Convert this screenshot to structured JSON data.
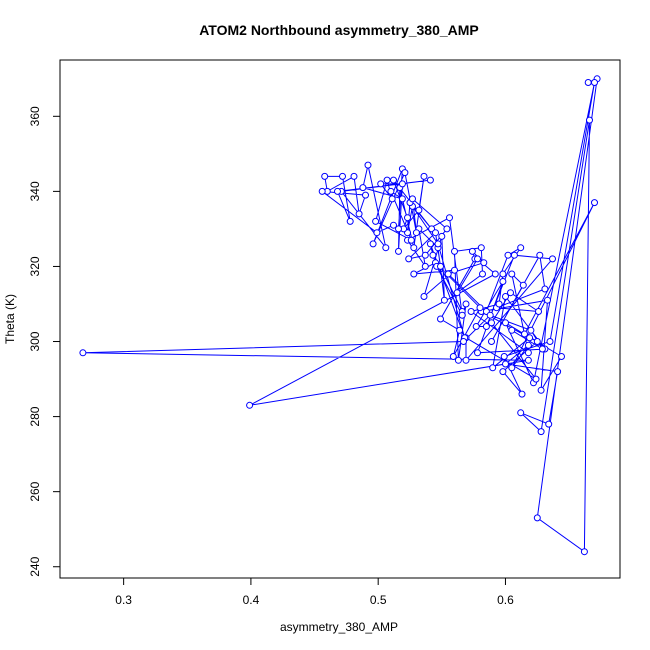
{
  "chart_data": {
    "type": "line",
    "title": "ATOM2 Northbound asymmetry_380_AMP",
    "xlabel": "asymmetry_380_AMP",
    "ylabel": "Theta (K)",
    "xlim": [
      0.25,
      0.69
    ],
    "ylim": [
      237,
      375
    ],
    "x_ticks": [
      0.3,
      0.4,
      0.5,
      0.6
    ],
    "y_ticks": [
      240,
      260,
      280,
      300,
      320,
      340,
      360
    ],
    "x_tick_labels": [
      "0.3",
      "0.4",
      "0.5",
      "0.6"
    ],
    "y_tick_labels": [
      "240",
      "260",
      "280",
      "300",
      "320",
      "340",
      "360"
    ],
    "line_color": "#0000ff",
    "marker": "open-circle",
    "grid": false,
    "legend": "none",
    "series": [
      {
        "x": [
          0.665,
          0.672,
          0.625,
          0.662,
          0.666,
          0.628,
          0.612,
          0.634,
          0.641,
          0.6,
          0.618,
          0.605,
          0.67,
          0.615,
          0.625,
          0.598,
          0.613,
          0.599,
          0.635,
          0.67,
          0.622,
          0.6,
          0.644,
          0.628,
          0.633,
          0.581,
          0.619,
          0.59,
          0.6,
          0.631,
          0.578,
          0.598,
          0.577,
          0.585,
          0.607,
          0.637,
          0.569,
          0.569,
          0.624,
          0.589,
          0.604,
          0.626,
          0.593,
          0.631,
          0.627,
          0.589,
          0.614,
          0.605,
          0.618,
          0.573,
          0.595,
          0.598,
          0.612,
          0.602,
          0.585,
          0.555,
          0.583,
          0.574,
          0.576,
          0.549,
          0.564,
          0.559,
          0.58,
          0.545,
          0.528,
          0.56,
          0.536,
          0.55,
          0.552,
          0.547,
          0.532,
          0.537,
          0.523,
          0.556,
          0.566,
          0.546,
          0.543,
          0.541,
          0.568,
          0.547,
          0.527,
          0.523,
          0.525,
          0.542,
          0.512,
          0.523,
          0.52,
          0.532,
          0.536,
          0.528,
          0.517,
          0.516,
          0.519,
          0.502,
          0.511,
          0.507,
          0.498,
          0.526,
          0.51,
          0.519,
          0.488,
          0.492,
          0.506,
          0.471,
          0.541,
          0.468,
          0.478,
          0.472,
          0.458,
          0.46,
          0.481,
          0.485,
          0.49,
          0.456,
          0.499,
          0.512,
          0.516,
          0.519,
          0.496,
          0.521,
          0.53,
          0.527,
          0.554,
          0.537,
          0.524,
          0.545,
          0.549,
          0.566,
          0.566,
          0.569,
          0.563,
          0.56,
          0.581,
          0.582,
          0.562,
          0.578,
          0.592,
          0.399,
          0.618,
          0.268,
          0.567,
          0.588,
          0.62,
          0.629,
          0.605
        ],
        "y": [
          369,
          370,
          253,
          244,
          359,
          276,
          281,
          278,
          292,
          294,
          299,
          293,
          337,
          302,
          300,
          292,
          286,
          296,
          300,
          369,
          289,
          305,
          296,
          287,
          311,
          308,
          301,
          293,
          312,
          298,
          297,
          316,
          304,
          304,
          323,
          322,
          295,
          301,
          290,
          305,
          313,
          308,
          309,
          314,
          323,
          300,
          315,
          318,
          297,
          308,
          310,
          318,
          325,
          323,
          308,
          318,
          321,
          324,
          322,
          306,
          303,
          296,
          309,
          321,
          318,
          319,
          312,
          328,
          311,
          325,
          330,
          320,
          327,
          333,
          307,
          320,
          323,
          326,
          301,
          326,
          336,
          329,
          337,
          330,
          343,
          333,
          330,
          335,
          344,
          325,
          341,
          324,
          342,
          342,
          338,
          343,
          332,
          327,
          340,
          338,
          341,
          347,
          325,
          340,
          343,
          340,
          332,
          344,
          344,
          340,
          344,
          334,
          339,
          340,
          329,
          331,
          330,
          346,
          326,
          345,
          329,
          338,
          330,
          323,
          322,
          329,
          320,
          308,
          307,
          310,
          295,
          324,
          325,
          318,
          313,
          322,
          318,
          283,
          295,
          297,
          300,
          307,
          303,
          298,
          303
        ]
      }
    ]
  }
}
